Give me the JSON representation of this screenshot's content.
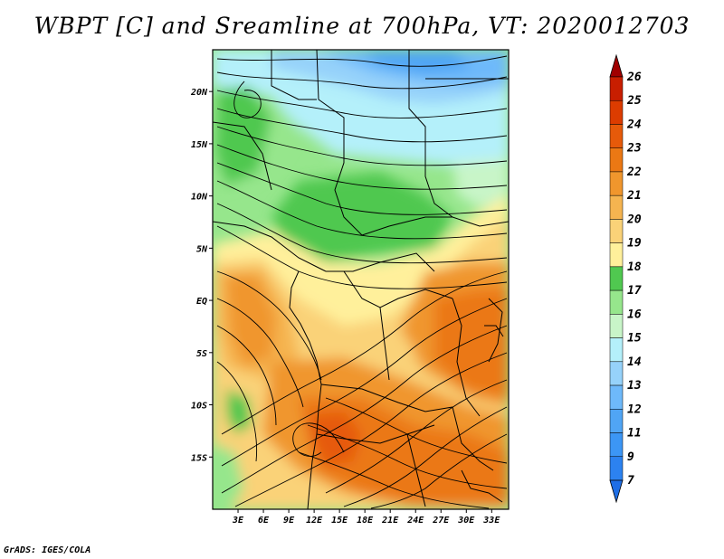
{
  "title": "WBPT [C] and Sreamline at 700hPa, VT: 2020012703",
  "footer": "GrADS: IGES/COLA",
  "chart_data": {
    "type": "heatmap",
    "title": "WBPT [C] and Sreamline at 700hPa, VT: 2020012703",
    "variable": "Wet-bulb potential temperature [C]",
    "level": "700hPa",
    "valid_time": "2020012703",
    "lon_range": [
      0,
      35
    ],
    "lat_range": [
      -20,
      24
    ],
    "x_ticks": [
      "3E",
      "6E",
      "9E",
      "12E",
      "15E",
      "18E",
      "21E",
      "24E",
      "27E",
      "30E",
      "33E"
    ],
    "x_tick_values": [
      3,
      6,
      9,
      12,
      15,
      18,
      21,
      24,
      27,
      30,
      33
    ],
    "y_ticks": [
      "20N",
      "15N",
      "10N",
      "5N",
      "EQ",
      "5S",
      "10S",
      "15S"
    ],
    "y_tick_values": [
      20,
      15,
      10,
      5,
      0,
      -5,
      -10,
      -15
    ],
    "colorbar": {
      "levels": [
        "7",
        "9",
        "11",
        "12",
        "13",
        "14",
        "15",
        "16",
        "17",
        "18",
        "19",
        "20",
        "21",
        "22",
        "23",
        "24",
        "25",
        "26"
      ],
      "colors": [
        "#1e6ee6",
        "#2c82f0",
        "#3c96f5",
        "#50a5f5",
        "#6eb9fa",
        "#96d2fa",
        "#b4f0fa",
        "#c8f5c8",
        "#96e68c",
        "#50c850",
        "#fff09b",
        "#fad278",
        "#f5b450",
        "#f0962d",
        "#eb7814",
        "#e65a0a",
        "#dc3c00",
        "#c81e00",
        "#a00000"
      ]
    }
  },
  "icons": {
    "colorbar_triangle_top": "triangle-up",
    "colorbar_triangle_bottom": "triangle-down"
  }
}
